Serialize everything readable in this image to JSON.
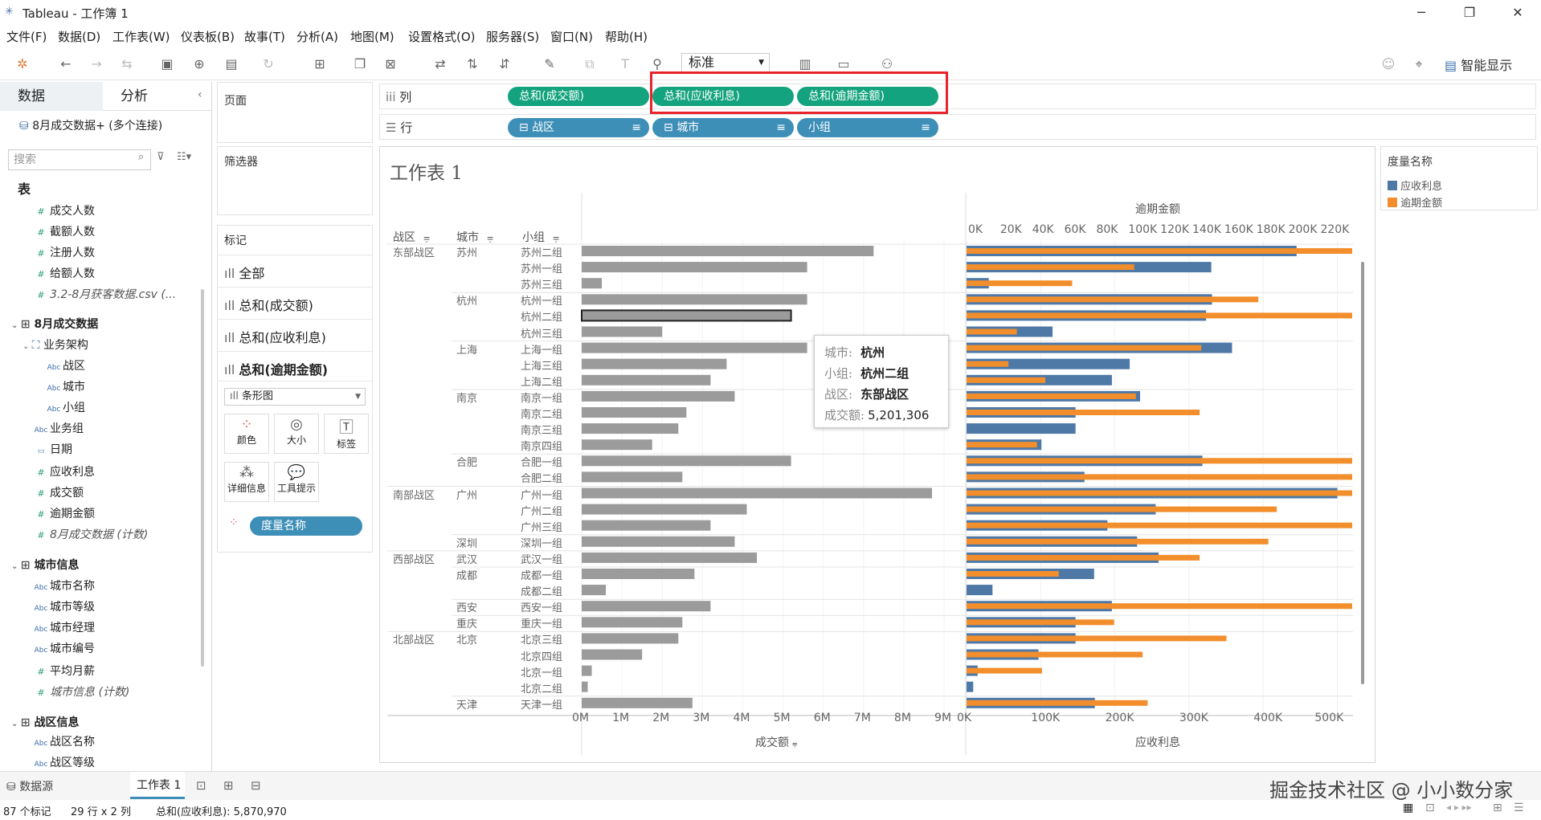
{
  "window": {
    "title": "Tableau - 工作簿 1",
    "minimize": "─",
    "maximize": "❐",
    "close": "✕"
  },
  "menu": [
    "文件(F)",
    "数据(D)",
    "工作表(W)",
    "仪表板(B)",
    "故事(T)",
    "分析(A)",
    "地图(M)",
    "设置格式(O)",
    "服务器(S)",
    "窗口(N)",
    "帮助(H)"
  ],
  "toolbar": {
    "fit_select": "标准",
    "smart_show": "智能显示"
  },
  "left": {
    "tab_data": "数据",
    "tab_analysis": "分析",
    "connection": "8月成交数据+ (多个连接)",
    "search_placeholder": "搜索",
    "tables_header": "表",
    "fields1": [
      "成交人数",
      "截额人数",
      "注册人数",
      "给额人数"
    ],
    "csv_count": "3.2-8月获客数据.csv (...",
    "group1": "8月成交数据",
    "hier": "业务架构",
    "hier_items": [
      "战区",
      "城市",
      "小组"
    ],
    "g1_fields": [
      "业务组",
      "日期",
      "应收利息",
      "成交额",
      "逾期金额"
    ],
    "g1_count": "8月成交数据 (计数)",
    "group2": "城市信息",
    "g2_fields": [
      "城市名称",
      "城市等级",
      "城市经理",
      "城市编号",
      "平均月薪"
    ],
    "g2_count": "城市信息 (计数)",
    "group3": "战区信息",
    "g3_fields": [
      "战区名称",
      "战区等级"
    ]
  },
  "cards": {
    "pages": "页面",
    "filters": "筛选器",
    "marks": "标记",
    "mark_all": "全部",
    "mark1": "总和(成交额)",
    "mark2": "总和(应收利息)",
    "mark3": "总和(逾期金额)",
    "mark_type": "条形图",
    "btn_color": "颜色",
    "btn_size": "大小",
    "btn_label": "标签",
    "btn_detail": "详细信息",
    "btn_tooltip": "工具提示",
    "measure_pill": "度量名称"
  },
  "shelves": {
    "columns_label": "列",
    "rows_label": "行",
    "col_pills": [
      "总和(成交额)",
      "总和(应收利息)",
      "总和(逾期金额)"
    ],
    "row_pills": [
      "战区",
      "城市",
      "小组"
    ]
  },
  "sheet": {
    "title": "工作表 1",
    "hdr_zone": "战区",
    "hdr_city": "城市",
    "hdr_group": "小组",
    "top_axis_title": "逾期金额"
  },
  "colors": {
    "gray": "#9b9b9b",
    "blue": "#4e79a7",
    "orange": "#f28e2b",
    "green": "#14a37f",
    "teal": "#3d8fb8"
  },
  "chart_data": {
    "type": "bar",
    "rows": [
      {
        "zone": "东部战区",
        "city": "苏州",
        "group": "苏州二组",
        "sales": 7.25,
        "interest": 445000,
        "overdue": 230000
      },
      {
        "zone": "",
        "city": "",
        "group": "苏州一组",
        "sales": 5.6,
        "interest": 330000,
        "overdue": 100000
      },
      {
        "zone": "",
        "city": "",
        "group": "苏州三组",
        "sales": 0.5,
        "interest": 30000,
        "overdue": 63000
      },
      {
        "zone": "",
        "city": "杭州",
        "group": "杭州一组",
        "sales": 5.6,
        "interest": 331000,
        "overdue": 174000
      },
      {
        "zone": "",
        "city": "",
        "group": "杭州二组",
        "sales": 5.2,
        "interest": 323000,
        "overdue": 237000
      },
      {
        "zone": "",
        "city": "",
        "group": "杭州三组",
        "sales": 2.0,
        "interest": 116000,
        "overdue": 30000
      },
      {
        "zone": "",
        "city": "上海",
        "group": "上海一组",
        "sales": 5.6,
        "interest": 358000,
        "overdue": 140000
      },
      {
        "zone": "",
        "city": "",
        "group": "上海三组",
        "sales": 3.6,
        "interest": 220000,
        "overdue": 25000
      },
      {
        "zone": "",
        "city": "",
        "group": "上海二组",
        "sales": 3.2,
        "interest": 196000,
        "overdue": 47000
      },
      {
        "zone": "",
        "city": "南京",
        "group": "南京一组",
        "sales": 3.8,
        "interest": 234000,
        "overdue": 101000
      },
      {
        "zone": "",
        "city": "",
        "group": "南京二组",
        "sales": 2.6,
        "interest": 147000,
        "overdue": 139000
      },
      {
        "zone": "",
        "city": "",
        "group": "南京三组",
        "sales": 2.4,
        "interest": 147000,
        "overdue": 0
      },
      {
        "zone": "",
        "city": "",
        "group": "南京四组",
        "sales": 1.75,
        "interest": 101000,
        "overdue": 42000
      },
      {
        "zone": "",
        "city": "合肥",
        "group": "合肥一组",
        "sales": 5.2,
        "interest": 318000,
        "overdue": 328000
      },
      {
        "zone": "",
        "city": "",
        "group": "合肥二组",
        "sales": 2.5,
        "interest": 159000,
        "overdue": 298000
      },
      {
        "zone": "南部战区",
        "city": "广州",
        "group": "广州一组",
        "sales": 8.7,
        "interest": 500000,
        "overdue": 500000
      },
      {
        "zone": "",
        "city": "",
        "group": "广州二组",
        "sales": 4.1,
        "interest": 255000,
        "overdue": 185000
      },
      {
        "zone": "",
        "city": "",
        "group": "广州三组",
        "sales": 3.2,
        "interest": 190000,
        "overdue": 355000
      },
      {
        "zone": "",
        "city": "深圳",
        "group": "深圳一组",
        "sales": 3.8,
        "interest": 230000,
        "overdue": 180000
      },
      {
        "zone": "西部战区",
        "city": "武汉",
        "group": "武汉一组",
        "sales": 4.35,
        "interest": 259000,
        "overdue": 139000
      },
      {
        "zone": "",
        "city": "成都",
        "group": "成都一组",
        "sales": 2.8,
        "interest": 172000,
        "overdue": 55000
      },
      {
        "zone": "",
        "city": "",
        "group": "成都二组",
        "sales": 0.6,
        "interest": 35000,
        "overdue": 0
      },
      {
        "zone": "",
        "city": "西安",
        "group": "西安一组",
        "sales": 3.2,
        "interest": 196000,
        "overdue": 282000
      },
      {
        "zone": "",
        "city": "重庆",
        "group": "重庆一组",
        "sales": 2.5,
        "interest": 147000,
        "overdue": 88000
      },
      {
        "zone": "北部战区",
        "city": "北京",
        "group": "北京三组",
        "sales": 2.4,
        "interest": 147000,
        "overdue": 155000
      },
      {
        "zone": "",
        "city": "",
        "group": "北京四组",
        "sales": 1.5,
        "interest": 97000,
        "overdue": 105000
      },
      {
        "zone": "",
        "city": "",
        "group": "北京一组",
        "sales": 0.25,
        "interest": 15000,
        "overdue": 45000
      },
      {
        "zone": "",
        "city": "",
        "group": "北京二组",
        "sales": 0.15,
        "interest": 9000,
        "overdue": 0
      },
      {
        "zone": "",
        "city": "天津",
        "group": "天津一组",
        "sales": 2.75,
        "interest": 173000,
        "overdue": 108000
      }
    ],
    "sales_ticks": [
      "0M",
      "1M",
      "2M",
      "3M",
      "4M",
      "5M",
      "6M",
      "7M",
      "8M",
      "9M"
    ],
    "interest_ticks": [
      "0K",
      "100K",
      "200K",
      "300K",
      "400K",
      "500K"
    ],
    "overdue_ticks": [
      "0K",
      "20K",
      "40K",
      "60K",
      "80K",
      "100K",
      "120K",
      "140K",
      "160K",
      "180K",
      "200K",
      "220K"
    ],
    "sales_range": [
      0,
      9
    ],
    "interest_range": [
      0,
      520000
    ],
    "overdue_range": [
      0,
      230000
    ],
    "xlabel_sales": "成交额",
    "xlabel_interest": "应收利息",
    "legend_title": "度量名称",
    "legend": [
      {
        "name": "应收利息",
        "color": "#4e79a7"
      },
      {
        "name": "逾期金额",
        "color": "#f28e2b"
      }
    ],
    "highlight_group": "杭州二组"
  },
  "tooltip": {
    "k1": "城市:",
    "v1": "杭州",
    "k2": "小组:",
    "v2": "杭州二组",
    "k3": "战区:",
    "v3": "东部战区",
    "k4": "成交额:",
    "v4": "5,201,306"
  },
  "bottom": {
    "datasource_tab": "数据源",
    "sheet_tab": "工作表 1",
    "status_marks": "87 个标记",
    "status_rows": "29 行 x 2 列",
    "status_sum": "总和(应收利息): 5,870,970"
  },
  "watermark": "掘金技术社区 @ 小小数分家"
}
